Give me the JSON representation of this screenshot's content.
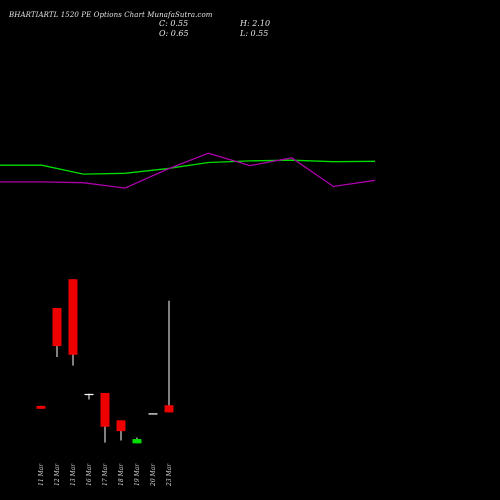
{
  "header": {
    "title": "BHARTIARTL 1520 PE Options  Chart MunafaSutra.com",
    "close": "C: 0.55",
    "high": "H: 2.10",
    "open": "O: 0.65",
    "low": "L: 0.55"
  },
  "colors": {
    "background": "#000000",
    "up": "#00dd00",
    "down": "#ee0000",
    "wick": "#ffffff",
    "green_line": "#00dd00",
    "purple_line": "#aa00aa"
  },
  "chart_data": {
    "type": "candlestick",
    "categories": [
      "11 Mar",
      "12 Mar",
      "13 Mar",
      "16 Mar",
      "17 Mar",
      "18 Mar",
      "19 Mar",
      "20 Mar",
      "23 Mar"
    ],
    "candles": [
      {
        "date": "11 Mar",
        "open": 0.64,
        "high": 0.64,
        "low": 0.6,
        "close": 0.6
      },
      {
        "date": "12 Mar",
        "open": 2.0,
        "high": 2.0,
        "low": 1.32,
        "close": 1.47
      },
      {
        "date": "13 Mar",
        "open": 2.4,
        "high": 2.4,
        "low": 1.2,
        "close": 1.35
      },
      {
        "date": "16 Mar",
        "open": 0.8,
        "high": 0.81,
        "low": 0.73,
        "close": 0.8
      },
      {
        "date": "17 Mar",
        "open": 0.82,
        "high": 0.82,
        "low": 0.13,
        "close": 0.35
      },
      {
        "date": "18 Mar",
        "open": 0.44,
        "high": 0.44,
        "low": 0.16,
        "close": 0.29
      },
      {
        "date": "19 Mar",
        "open": 0.12,
        "high": 0.2,
        "low": 0.12,
        "close": 0.18
      },
      {
        "date": "20 Mar",
        "open": 0.53,
        "high": 0.53,
        "low": 0.53,
        "close": 0.53
      },
      {
        "date": "23 Mar",
        "open": 0.65,
        "high": 2.1,
        "low": 0.55,
        "close": 0.55
      }
    ],
    "price_ylim": [
      0,
      3
    ],
    "overlays": [
      {
        "color": "green",
        "values": [
          0.93,
          0.93,
          0.7,
          0.72,
          0.84,
          1.0,
          1.04,
          1.06,
          1.02,
          1.03
        ]
      },
      {
        "color": "purple",
        "values": [
          0.5,
          0.5,
          0.48,
          0.34,
          0.82,
          1.24,
          0.92,
          1.12,
          0.38,
          0.54
        ]
      },
      {
        "ylim": [
          -1,
          3
        ]
      }
    ]
  }
}
